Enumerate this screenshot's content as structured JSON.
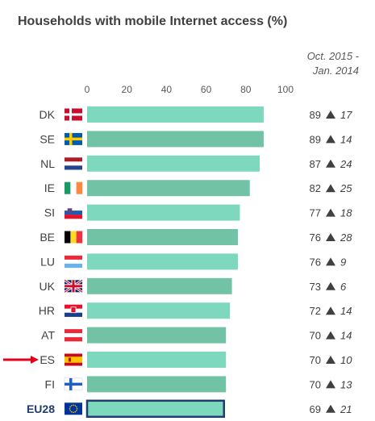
{
  "title": "Households with mobile Internet access (%)",
  "change_header": [
    "Oct. 2015 -",
    "Jan. 2014"
  ],
  "colors": {
    "bar_light": "#7dd8bd",
    "bar_dark": "#72c2a6",
    "eu_border": "#1f3d6e",
    "arrow": "#e3001b",
    "text": "#404040",
    "triangle": "#404040"
  },
  "chart_data": {
    "type": "bar",
    "orientation": "horizontal",
    "title": "Households with mobile Internet access (%)",
    "xlim": [
      0,
      100
    ],
    "xticks": [
      0,
      20,
      40,
      60,
      80,
      100
    ],
    "categories": [
      "DK",
      "SE",
      "NL",
      "IE",
      "SI",
      "BE",
      "LU",
      "UK",
      "HR",
      "AT",
      "ES",
      "FI",
      "EU28"
    ],
    "values": [
      89,
      89,
      87,
      82,
      77,
      76,
      76,
      73,
      72,
      70,
      70,
      70,
      69
    ],
    "change": [
      17,
      14,
      24,
      25,
      18,
      28,
      9,
      6,
      14,
      14,
      10,
      13,
      21
    ],
    "highlight": "ES",
    "aggregate": "EU28"
  }
}
